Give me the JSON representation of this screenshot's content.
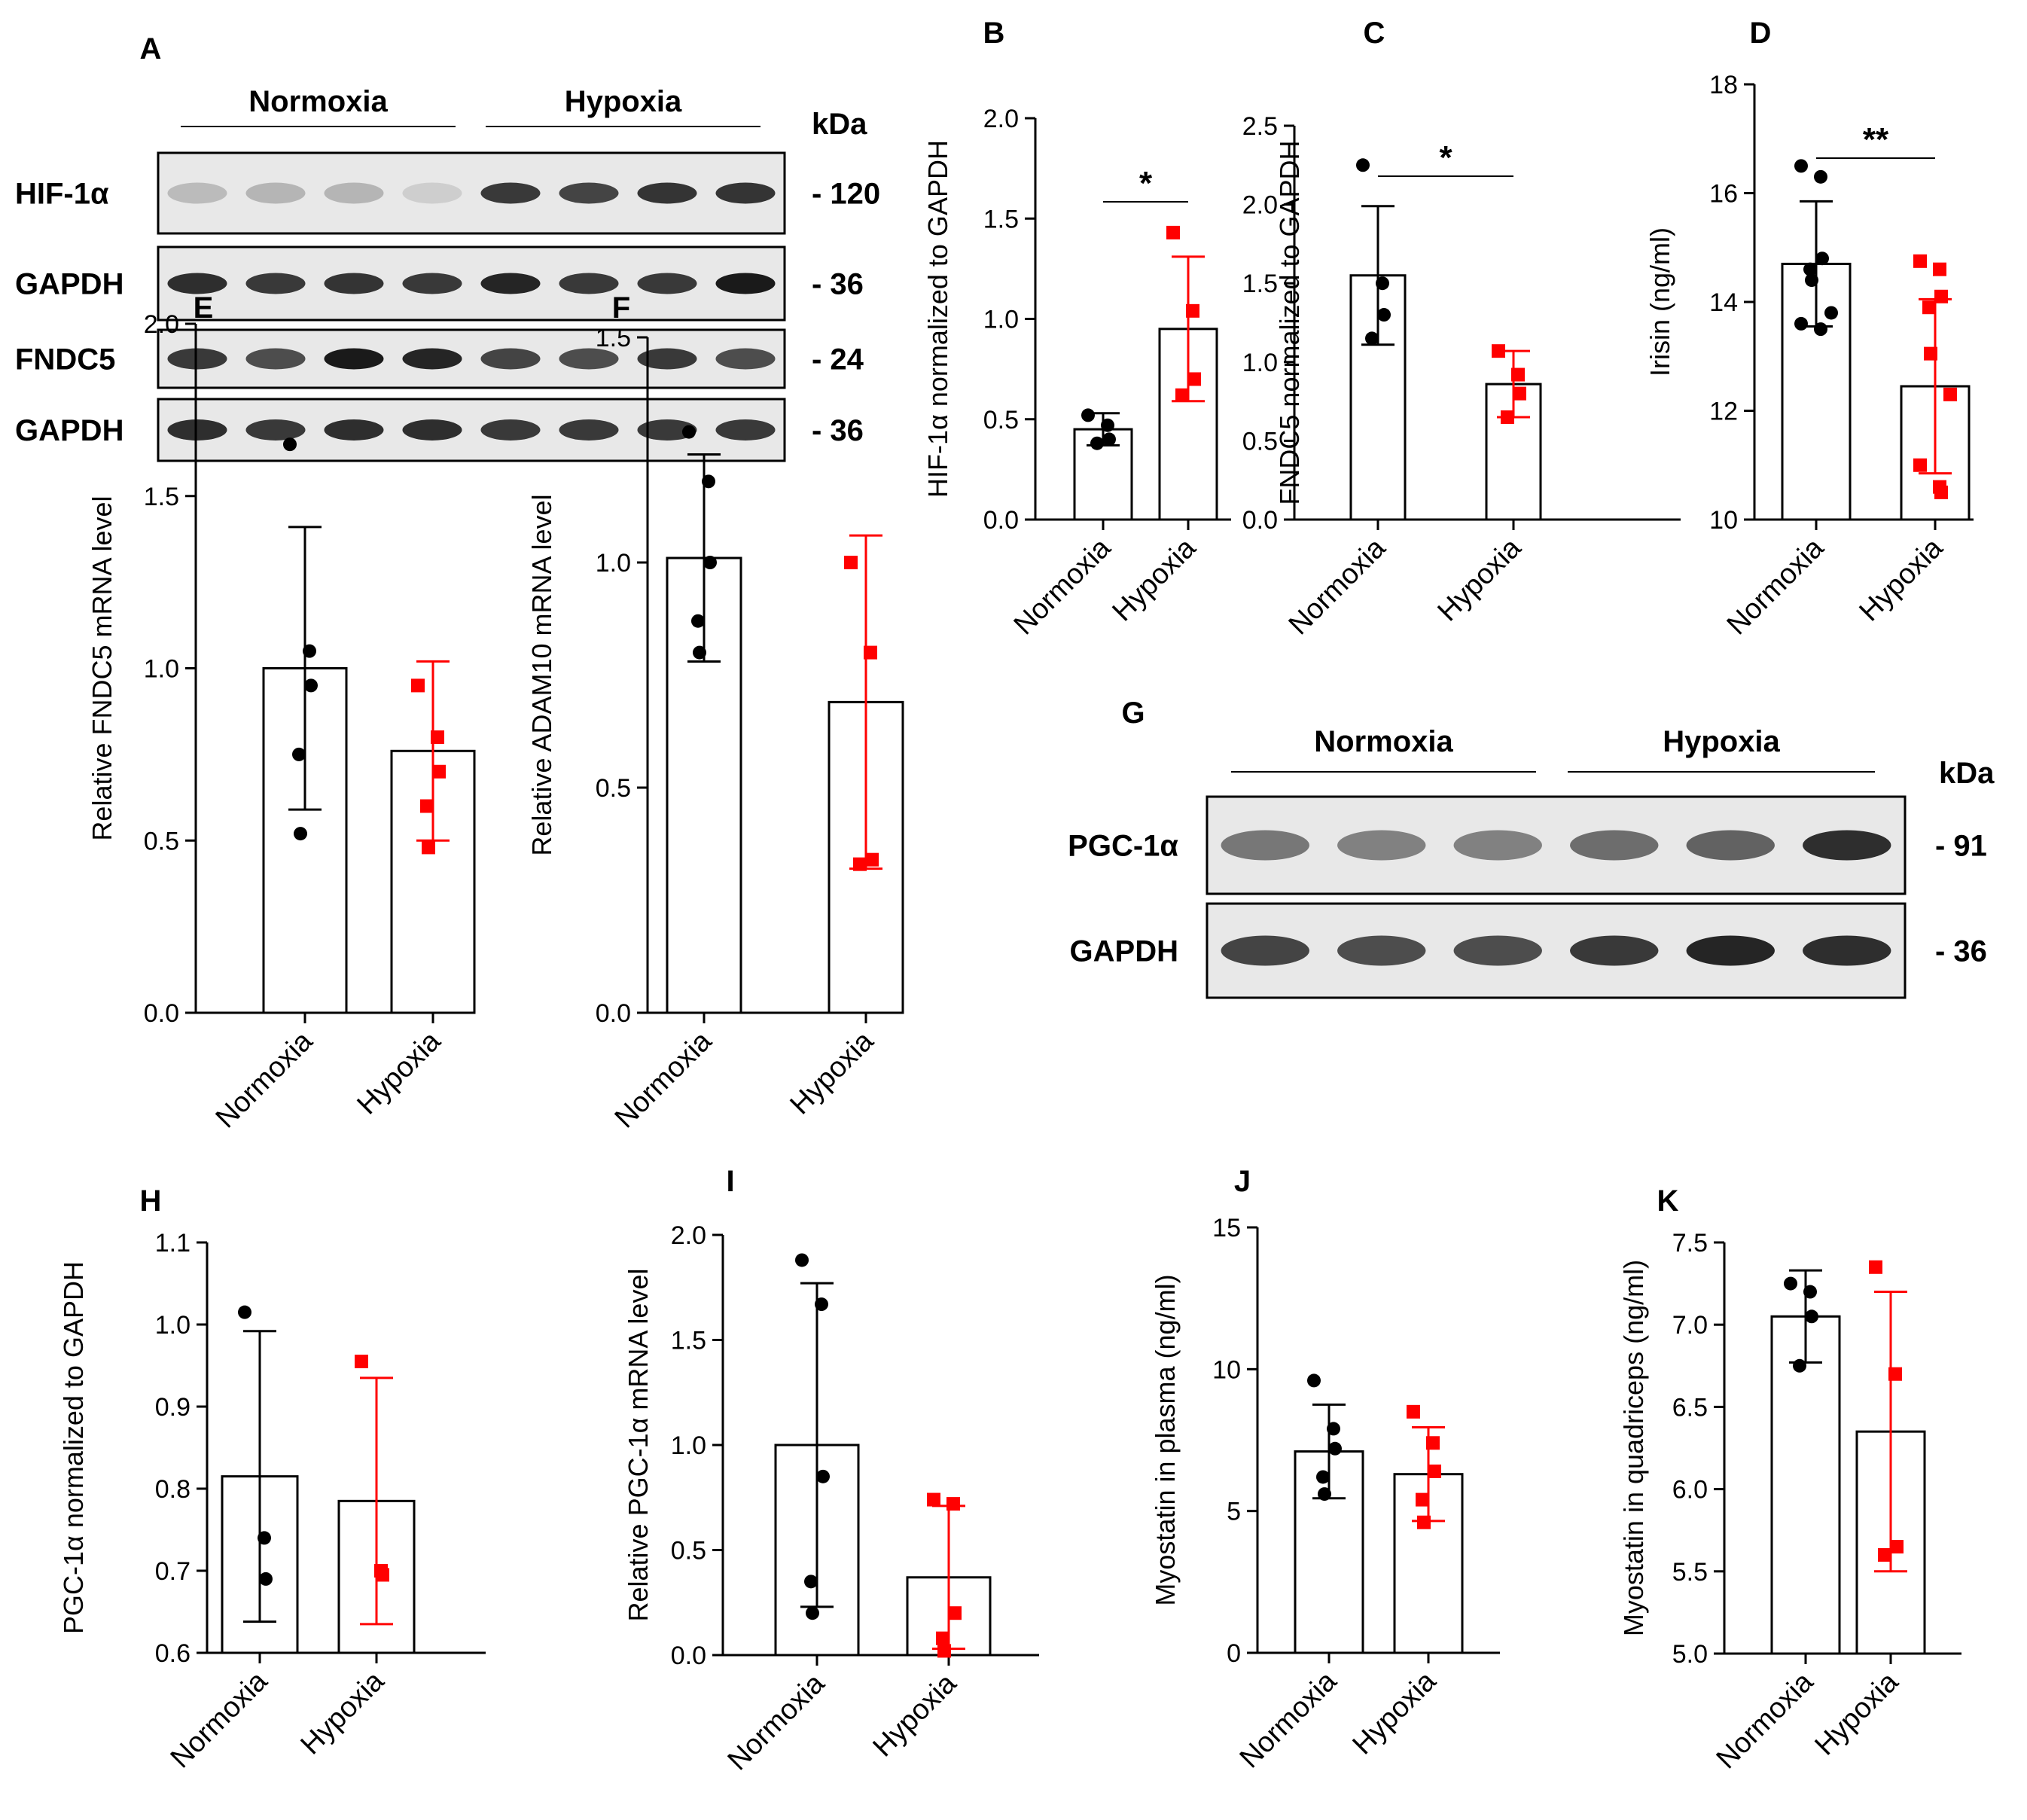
{
  "figure": {
    "blot_A": {
      "panel_label": "A",
      "group_labels": [
        "Normoxia",
        "Hypoxia"
      ],
      "unit_label": "kDa",
      "rows": [
        {
          "label": "HIF-1α",
          "marker": "- 120",
          "intensity": [
            0.22,
            0.25,
            0.25,
            0.12,
            0.85,
            0.8,
            0.88,
            0.88
          ]
        },
        {
          "label": "GAPDH",
          "marker": "- 36",
          "intensity": [
            0.9,
            0.85,
            0.88,
            0.85,
            0.95,
            0.85,
            0.85,
            1.0
          ]
        },
        {
          "label": "FNDC5",
          "marker": "- 24",
          "intensity": [
            0.85,
            0.75,
            1.0,
            0.95,
            0.8,
            0.75,
            0.85,
            0.75
          ]
        },
        {
          "label": "GAPDH",
          "marker": "- 36",
          "intensity": [
            0.9,
            0.85,
            0.9,
            0.9,
            0.85,
            0.85,
            0.85,
            0.85
          ]
        }
      ]
    },
    "blot_G": {
      "panel_label": "G",
      "group_labels": [
        "Normoxia",
        "Hypoxia"
      ],
      "unit_label": "kDa",
      "rows": [
        {
          "label": "PGC-1α",
          "marker": "- 91",
          "intensity": [
            0.55,
            0.5,
            0.5,
            0.6,
            0.65,
            0.9
          ]
        },
        {
          "label": "GAPDH",
          "marker": "- 36",
          "intensity": [
            0.8,
            0.75,
            0.75,
            0.85,
            0.95,
            0.9
          ]
        }
      ]
    }
  },
  "chart_data": [
    {
      "panel": "B",
      "type": "bar",
      "title": "",
      "ylabel": "HIF-1α normalized to GAPDH",
      "xlabel": "",
      "categories": [
        "Normoxia",
        "Hypoxia"
      ],
      "ylim": [
        0,
        2.0
      ],
      "yticks": [
        "0.0",
        "0.5",
        "1.0",
        "1.5",
        "2.0"
      ],
      "means": [
        0.45,
        0.95
      ],
      "errors": [
        0.08,
        0.36
      ],
      "points": [
        [
          0.52,
          0.47,
          0.4,
          0.38
        ],
        [
          1.43,
          1.04,
          0.7,
          0.62
        ]
      ],
      "significance": "*",
      "colors": [
        "#000000",
        "#ff0000"
      ]
    },
    {
      "panel": "C",
      "type": "bar",
      "title": "",
      "ylabel": "FNDC5  normalized to GAPDH",
      "xlabel": "",
      "categories": [
        "Normoxia",
        "Hypoxia"
      ],
      "ylim": [
        0,
        2.5
      ],
      "yticks": [
        "0.0",
        "0.5",
        "1.0",
        "1.5",
        "2.0",
        "2.5"
      ],
      "means": [
        1.55,
        0.86
      ],
      "errors": [
        0.44,
        0.21
      ],
      "points": [
        [
          2.25,
          1.5,
          1.3,
          1.15
        ],
        [
          1.07,
          0.92,
          0.8,
          0.65
        ]
      ],
      "significance": "*",
      "colors": [
        "#000000",
        "#ff0000"
      ]
    },
    {
      "panel": "D",
      "type": "bar",
      "title": "",
      "ylabel": "Irisin (ng/ml)",
      "xlabel": "",
      "categories": [
        "Normoxia",
        "Hypoxia"
      ],
      "ylim": [
        10,
        18
      ],
      "yticks": [
        "10",
        "12",
        "14",
        "16",
        "18"
      ],
      "means": [
        14.7,
        12.45
      ],
      "errors": [
        1.15,
        1.6
      ],
      "points": [
        [
          16.5,
          16.3,
          14.8,
          14.6,
          14.4,
          13.8,
          13.6,
          13.5
        ],
        [
          14.75,
          14.6,
          14.1,
          13.9,
          13.05,
          12.3,
          11.0,
          10.6,
          10.5
        ]
      ],
      "significance": "**",
      "colors": [
        "#000000",
        "#ff0000"
      ]
    },
    {
      "panel": "E",
      "type": "bar",
      "title": "",
      "ylabel": "Relative FNDC5 mRNA level",
      "xlabel": "",
      "categories": [
        "Normoxia",
        "Hypoxia"
      ],
      "ylim": [
        0,
        2.0
      ],
      "yticks": [
        "0.0",
        "0.5",
        "1.0",
        "1.5",
        "2.0"
      ],
      "means": [
        1.0,
        0.76
      ],
      "errors": [
        0.41,
        0.26
      ],
      "points": [
        [
          1.65,
          1.05,
          0.95,
          0.75,
          0.52
        ],
        [
          0.95,
          0.8,
          0.7,
          0.6,
          0.48
        ]
      ],
      "significance": "",
      "colors": [
        "#000000",
        "#ff0000"
      ]
    },
    {
      "panel": "F",
      "type": "bar",
      "title": "",
      "ylabel": "Relative ADAM10 mRNA level",
      "xlabel": "",
      "categories": [
        "Normoxia",
        "Hypoxia"
      ],
      "ylim": [
        0,
        1.5
      ],
      "yticks": [
        "0.0",
        "0.5",
        "1.0",
        "1.5"
      ],
      "means": [
        1.01,
        0.69
      ],
      "errors": [
        0.23,
        0.37
      ],
      "points": [
        [
          1.29,
          1.18,
          1.0,
          0.87,
          0.8
        ],
        [
          1.0,
          0.8,
          0.34,
          0.33
        ]
      ],
      "significance": "",
      "colors": [
        "#000000",
        "#ff0000"
      ]
    },
    {
      "panel": "H",
      "type": "bar",
      "title": "",
      "ylabel": "PGC-1α  normalized to GAPDH",
      "xlabel": "",
      "categories": [
        "Normoxia",
        "Hypoxia"
      ],
      "ylim": [
        0.6,
        1.1
      ],
      "yticks": [
        "0.6",
        "0.7",
        "0.8",
        "0.9",
        "1.0",
        "1.1"
      ],
      "means": [
        0.815,
        0.785
      ],
      "errors": [
        0.177,
        0.15
      ],
      "points": [
        [
          1.015,
          0.74,
          0.69
        ],
        [
          0.955,
          0.7,
          0.695
        ]
      ],
      "significance": "",
      "colors": [
        "#000000",
        "#ff0000"
      ]
    },
    {
      "panel": "I",
      "type": "bar",
      "title": "",
      "ylabel": "Relative PGC-1α mRNA level",
      "xlabel": "",
      "categories": [
        "Normoxia",
        "Hypoxia"
      ],
      "ylim": [
        0,
        2.0
      ],
      "yticks": [
        "0.0",
        "0.5",
        "1.0",
        "1.5",
        "2.0"
      ],
      "means": [
        1.0,
        0.37
      ],
      "errors": [
        0.77,
        0.34
      ],
      "points": [
        [
          1.88,
          1.67,
          0.85,
          0.35,
          0.2
        ],
        [
          0.74,
          0.72,
          0.2,
          0.08,
          0.02
        ]
      ],
      "significance": "",
      "colors": [
        "#000000",
        "#ff0000"
      ]
    },
    {
      "panel": "J",
      "type": "bar",
      "title": "",
      "ylabel": "Myostatin  in plasma (ng/ml)",
      "xlabel": "",
      "categories": [
        "Normoxia",
        "Hypoxia"
      ],
      "ylim": [
        0,
        15
      ],
      "yticks": [
        "0",
        "5",
        "10",
        "15"
      ],
      "means": [
        7.1,
        6.3
      ],
      "errors": [
        1.65,
        1.65
      ],
      "points": [
        [
          9.6,
          7.9,
          7.2,
          6.2,
          5.6
        ],
        [
          8.5,
          7.4,
          6.4,
          5.4,
          4.6
        ]
      ],
      "significance": "",
      "colors": [
        "#000000",
        "#ff0000"
      ]
    },
    {
      "panel": "K",
      "type": "bar",
      "title": "",
      "ylabel": "Myostatin  in quadriceps (ng/ml)",
      "xlabel": "",
      "categories": [
        "Normoxia",
        "Hypoxia"
      ],
      "ylim": [
        5.0,
        7.5
      ],
      "yticks": [
        "5.0",
        "5.5",
        "6.0",
        "6.5",
        "7.0",
        "7.5"
      ],
      "means": [
        7.05,
        6.35
      ],
      "errors": [
        0.28,
        0.85
      ],
      "points": [
        [
          7.25,
          7.2,
          7.05,
          6.75
        ],
        [
          7.35,
          6.7,
          5.65,
          5.6
        ]
      ],
      "significance": "",
      "colors": [
        "#000000",
        "#ff0000"
      ]
    }
  ]
}
